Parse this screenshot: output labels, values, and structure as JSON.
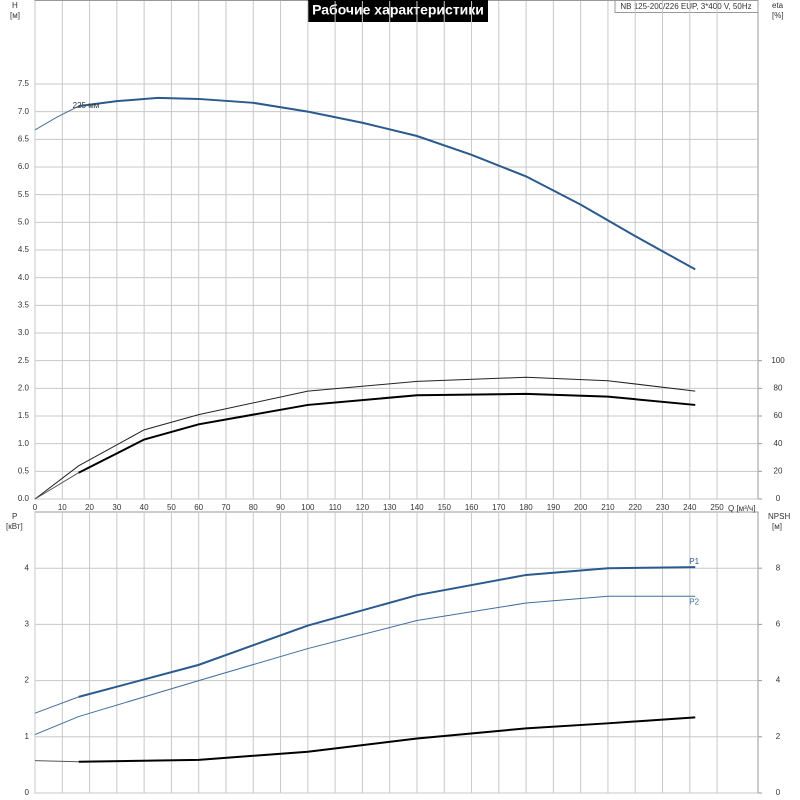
{
  "chart_data": [
    {
      "type": "line",
      "title": "Рабочие характеристики",
      "subtitle": "NB 125-200/226 EUP, 3*400 V, 50Hz",
      "ylabel": "H",
      "ylabel_unit": "[м]",
      "y2label": "eta",
      "y2label_unit": "[%]",
      "xlabel": "Q [м³/ч]",
      "xlim": [
        0,
        265
      ],
      "xticks": [
        0,
        10,
        20,
        30,
        40,
        50,
        60,
        70,
        80,
        90,
        100,
        110,
        120,
        130,
        140,
        150,
        160,
        170,
        180,
        190,
        200,
        210,
        220,
        230,
        240,
        250
      ],
      "ylim": [
        0,
        9
      ],
      "yticks": [
        {
          "value": 0,
          "label": "0.0"
        },
        0.5,
        {
          "value": 1,
          "label": "1.0"
        },
        1.5,
        {
          "value": 2,
          "label": "2.0"
        },
        2.5,
        {
          "value": 3,
          "label": "3.0"
        },
        3.5,
        {
          "value": 4,
          "label": "4.0"
        },
        4.5,
        {
          "value": 5,
          "label": "5.0"
        },
        5.5,
        {
          "value": 6,
          "label": "6.0"
        },
        6.5,
        {
          "value": 7,
          "label": "7.0"
        },
        7.5
      ],
      "y2lim": [
        0,
        360
      ],
      "y2ticks": [
        0,
        20,
        40,
        60,
        80,
        100
      ],
      "grid": true,
      "show_xtick_labels": true,
      "annotations": [
        {
          "text": "225 мм",
          "x": 16,
          "y": 7.12
        }
      ],
      "series": [
        {
          "color": "#4a6f9a",
          "line_width": 1,
          "x": [
            0,
            8,
            16
          ],
          "values": [
            6.67,
            6.9,
            7.1
          ]
        },
        {
          "color": "#2a5a8e",
          "line_width": 2,
          "x": [
            16,
            30,
            45,
            60,
            80,
            100,
            120,
            140,
            160,
            180,
            200,
            220,
            242
          ],
          "values": [
            7.1,
            7.19,
            7.25,
            7.23,
            7.16,
            7.0,
            6.8,
            6.56,
            6.22,
            5.83,
            5.32,
            4.75,
            4.15
          ]
        },
        {
          "color": "#222222",
          "line_width": 1,
          "axis": "y2",
          "x": [
            0,
            16,
            40,
            60,
            100,
            140,
            180,
            210,
            242
          ],
          "values": [
            0,
            24,
            50,
            61,
            78,
            85,
            88,
            85.5,
            78
          ]
        },
        {
          "color": "#555555",
          "line_width": 1,
          "axis": "y2",
          "x": [
            0,
            16
          ],
          "values": [
            0,
            19
          ]
        },
        {
          "color": "#000000",
          "line_width": 2,
          "axis": "y2",
          "x": [
            16,
            40,
            60,
            100,
            140,
            180,
            210,
            242
          ],
          "values": [
            19,
            43,
            54,
            68,
            75,
            76,
            74,
            68
          ]
        }
      ]
    },
    {
      "type": "line",
      "ylabel": "P",
      "ylabel_unit": "[кВт]",
      "y2label": "NPSH",
      "y2label_unit": "[м]",
      "xlim": [
        0,
        265
      ],
      "xticks": [
        0,
        10,
        20,
        30,
        40,
        50,
        60,
        70,
        80,
        90,
        100,
        110,
        120,
        130,
        140,
        150,
        160,
        170,
        180,
        190,
        200,
        210,
        220,
        230,
        240,
        250
      ],
      "ylim": [
        0,
        5
      ],
      "yticks": [
        0,
        1,
        2,
        3,
        4
      ],
      "y2lim": [
        0,
        10
      ],
      "y2ticks": [
        0,
        2,
        4,
        6,
        8
      ],
      "grid": true,
      "show_xtick_labels": false,
      "series": [
        {
          "color": "#4a6f9a",
          "line_width": 1,
          "x": [
            0,
            16
          ],
          "values": [
            1.42,
            1.71
          ]
        },
        {
          "name": "P1",
          "color": "#2a5a8e",
          "line_width": 2,
          "x": [
            16,
            60,
            100,
            140,
            180,
            210,
            242
          ],
          "values": [
            1.71,
            2.28,
            2.98,
            3.52,
            3.88,
            4.0,
            4.02
          ]
        },
        {
          "name": "P2",
          "color": "#3f6d9e",
          "line_width": 1,
          "x": [
            0,
            16,
            60,
            100,
            140,
            180,
            210,
            242
          ],
          "values": [
            1.04,
            1.36,
            2.0,
            2.57,
            3.07,
            3.38,
            3.5,
            3.5
          ]
        },
        {
          "color": "#555555",
          "line_width": 1,
          "axis": "y2",
          "x": [
            0,
            16
          ],
          "values": [
            1.15,
            1.11
          ]
        },
        {
          "color": "#000000",
          "line_width": 2,
          "axis": "y2",
          "x": [
            16,
            60,
            100,
            140,
            180,
            210,
            242
          ],
          "values": [
            1.11,
            1.18,
            1.47,
            1.94,
            2.3,
            2.48,
            2.69
          ]
        }
      ]
    }
  ]
}
